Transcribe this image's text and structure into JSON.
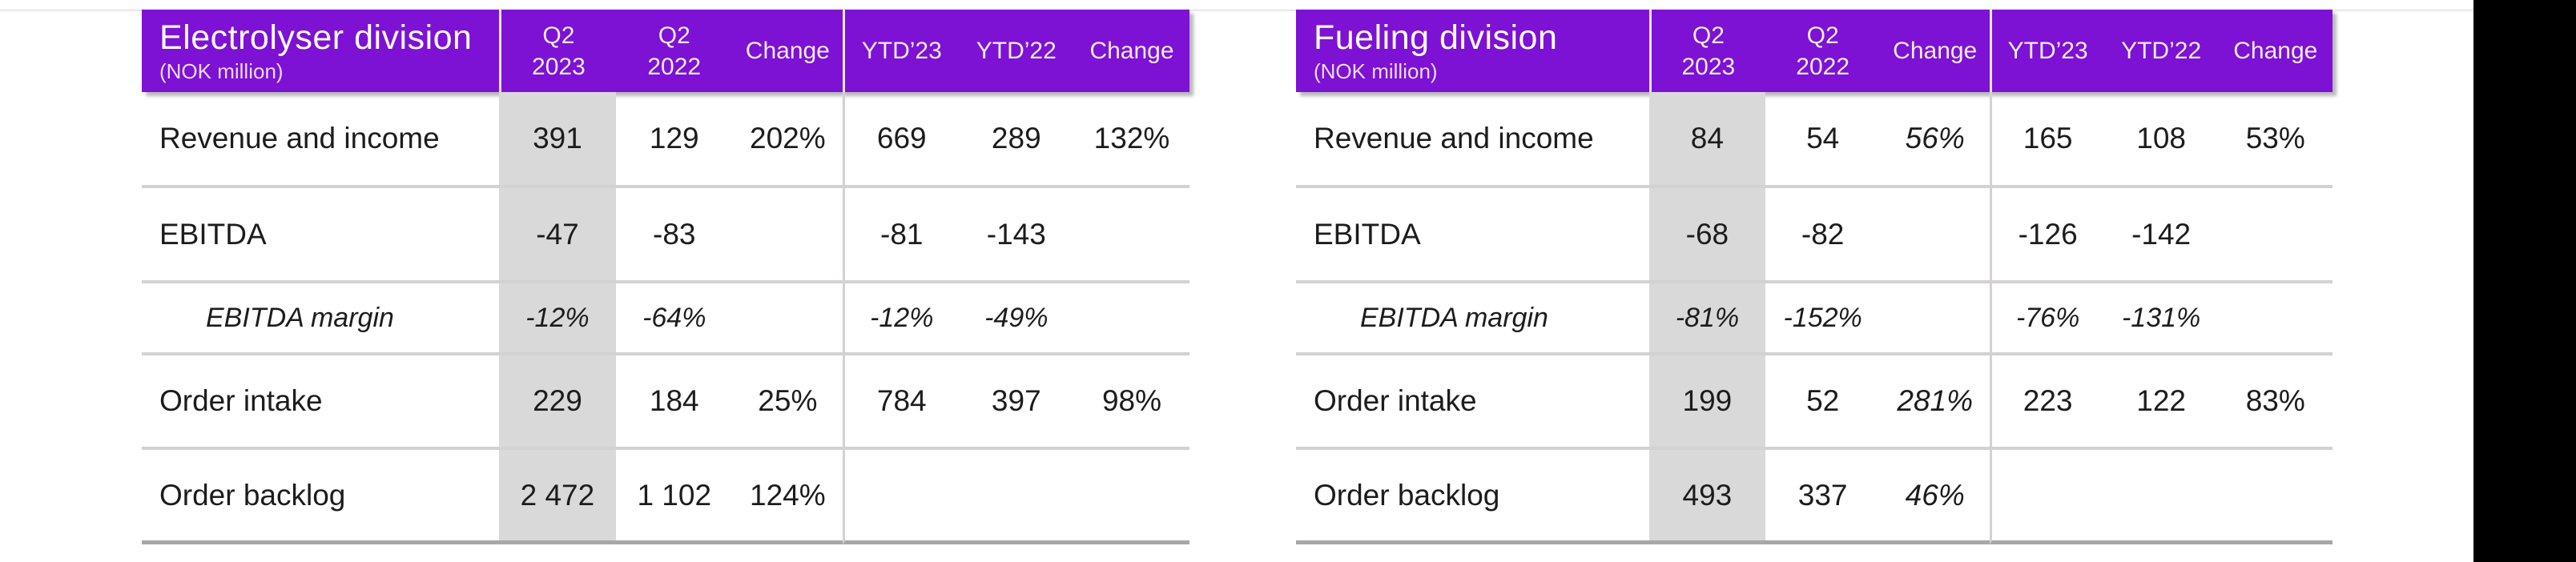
{
  "page": {
    "description": "Quarterly results slide with two division tables",
    "colors": {
      "accent_purple": "#7d11d4",
      "shade_gray": "#d9d9d9",
      "row_border_gray": "#d3d1d1",
      "bottom_border_gray": "#a8a6a6",
      "sidebar_black": "#000000"
    }
  },
  "tables": [
    {
      "title": "Electrolyser division",
      "subtitle": "(NOK million)",
      "columns": [
        {
          "l1": "Q2",
          "l2": "2023"
        },
        {
          "l1": "Q2",
          "l2": "2022"
        },
        {
          "l1": "Change",
          "l2": ""
        },
        {
          "l1": "YTD’23",
          "l2": ""
        },
        {
          "l1": "YTD’22",
          "l2": ""
        },
        {
          "l1": "Change",
          "l2": ""
        }
      ],
      "rows": [
        {
          "label": "Revenue and income",
          "cells": [
            "391",
            "129",
            "202%",
            "669",
            "289",
            "132%"
          ]
        },
        {
          "label": "EBITDA",
          "cells": [
            "-47",
            "-83",
            "",
            "-81",
            "-143",
            ""
          ]
        },
        {
          "label": "EBITDA margin",
          "cells": [
            "-12%",
            "-64%",
            "",
            "-12%",
            "-49%",
            ""
          ]
        },
        {
          "label": "Order intake",
          "cells": [
            "229",
            "184",
            "25%",
            "784",
            "397",
            "98%"
          ]
        },
        {
          "label": "Order backlog",
          "cells": [
            "2 472",
            "1 102",
            "124%",
            "",
            "",
            ""
          ]
        }
      ]
    },
    {
      "title": "Fueling division",
      "subtitle": "(NOK million)",
      "columns": [
        {
          "l1": "Q2",
          "l2": "2023"
        },
        {
          "l1": "Q2",
          "l2": "2022"
        },
        {
          "l1": "Change",
          "l2": ""
        },
        {
          "l1": "YTD’23",
          "l2": ""
        },
        {
          "l1": "YTD’22",
          "l2": ""
        },
        {
          "l1": "Change",
          "l2": ""
        }
      ],
      "rows": [
        {
          "label": "Revenue and income",
          "cells": [
            "84",
            "54",
            "56%",
            "165",
            "108",
            "53%"
          ]
        },
        {
          "label": "EBITDA",
          "cells": [
            "-68",
            "-82",
            "",
            "-126",
            "-142",
            ""
          ]
        },
        {
          "label": "EBITDA margin",
          "cells": [
            "-81%",
            "-152%",
            "",
            "-76%",
            "-131%",
            ""
          ]
        },
        {
          "label": "Order intake",
          "cells": [
            "199",
            "52",
            "281%",
            "223",
            "122",
            "83%"
          ]
        },
        {
          "label": "Order backlog",
          "cells": [
            "493",
            "337",
            "46%",
            "",
            "",
            ""
          ]
        }
      ]
    }
  ]
}
